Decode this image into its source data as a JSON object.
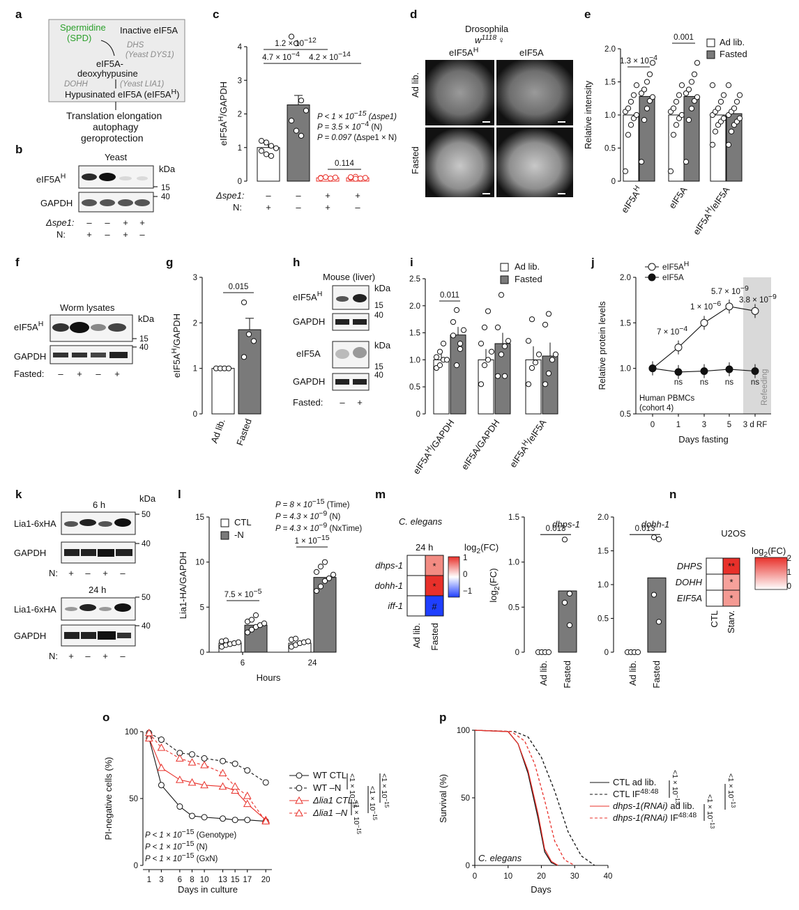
{
  "letters": [
    "a",
    "b",
    "c",
    "d",
    "e",
    "f",
    "g",
    "h",
    "i",
    "j",
    "k",
    "l",
    "m",
    "n",
    "o",
    "p"
  ],
  "a": {
    "spermidine": "Spermidine",
    "spd": "(SPD)",
    "inactive": "Inactive eIF5A",
    "dhs": "DHS",
    "dhs_yeast": "(Yeast DYS1)",
    "deoxy1": "eIF5A-",
    "deoxy2": "deoxyhypusine",
    "dohh": "DOHH",
    "dohh_yeast": "(Yeast LIA1)",
    "hypusinated": "Hypusinated eIF5A (eIF5A",
    "out1": "Translation elongation",
    "out2": "autophagy",
    "out3": "geroprotection"
  },
  "b": {
    "title": "Yeast",
    "kda": "kDa",
    "band1": "eIF5A",
    "band2": "GAPDH",
    "m15": "15",
    "m40": "40",
    "row1": "Δspe1:",
    "row2": "N:",
    "spe1": [
      "–",
      "–",
      "+",
      "+"
    ],
    "n": [
      "+",
      "–",
      "+",
      "–"
    ]
  },
  "c": {
    "ylabel": "eIF5A",
    "ylabel_sup": "H",
    "ylabel_rest": "/GAPDH",
    "yticks": [
      "0",
      "1",
      "2",
      "3",
      "4"
    ],
    "p1": "1.2 × 10",
    "p1e": "−12",
    "p2": "4.7 × 10",
    "p2e": "−4",
    "p3": "4.2 × 10",
    "p3e": "−14",
    "p4": "0.114",
    "s1": "P < 1 × 10",
    "s1e": "−15",
    "s1t": "(Δspe1)",
    "s2": "P = 3.5 × 10",
    "s2e": "−4",
    "s2t": "(N)",
    "s3": "P = 0.097",
    "s3t": "(Δspe1 × N)",
    "row1": "Δspe1:",
    "row2": "N:",
    "spe1": [
      "–",
      "–",
      "+",
      "+"
    ],
    "n": [
      "+",
      "–",
      "+",
      "–"
    ]
  },
  "chart_data": [
    {
      "panel": "c",
      "type": "bar",
      "categories": [
        "WT +N",
        "WT –N",
        "Δspe1 +N",
        "Δspe1 –N"
      ],
      "values": [
        1.0,
        2.27,
        0.1,
        0.1
      ],
      "errors": [
        0.1,
        0.28,
        0.02,
        0.02
      ],
      "points": [
        [
          1.2,
          1.15,
          1.05,
          0.98,
          0.9,
          0.8,
          0.75
        ],
        [
          4.3,
          4.1,
          2.4,
          2.1,
          1.8,
          1.5,
          1.35
        ],
        [
          0.1,
          0.12,
          0.08,
          0.11,
          0.09
        ],
        [
          0.1,
          0.13,
          0.08,
          0.1,
          0.12,
          0.07
        ]
      ],
      "ylabel": "eIF5AH/GAPDH",
      "ylim": [
        0,
        4
      ],
      "colors": [
        "#ffffff",
        "#7a7a7a",
        "#e8302a",
        "#e8302a"
      ]
    },
    {
      "panel": "e",
      "type": "bar",
      "categories": [
        "eIF5AH",
        "eIF5A",
        "eIF5AH/eIF5A"
      ],
      "series": [
        {
          "name": "Ad lib.",
          "values": [
            1.0,
            1.0,
            1.0
          ]
        },
        {
          "name": "Fasted",
          "values": [
            1.28,
            1.28,
            1.02
          ]
        }
      ],
      "ylabel": "Relative intensity",
      "ylim": [
        0,
        2.0
      ]
    },
    {
      "panel": "g",
      "type": "bar",
      "categories": [
        "Ad lib.",
        "Fasted"
      ],
      "values": [
        1.0,
        1.85
      ],
      "errors": [
        0,
        0.25
      ],
      "ylabel": "eIF5AH/GAPDH",
      "ylim": [
        0,
        3
      ]
    },
    {
      "panel": "i",
      "type": "bar",
      "categories": [
        "eIF5AH/GAPDH",
        "eIF5A/GAPDH",
        "eIF5AH/eIF5A"
      ],
      "series": [
        {
          "name": "Ad lib.",
          "values": [
            1.0,
            1.0,
            1.0
          ]
        },
        {
          "name": "Fasted",
          "values": [
            1.46,
            1.3,
            1.07
          ]
        }
      ],
      "ylim": [
        0,
        2.5
      ]
    },
    {
      "panel": "j",
      "type": "line",
      "x": [
        "0",
        "1",
        "3",
        "5",
        "3 d RF"
      ],
      "series": [
        {
          "name": "eIF5AH",
          "values": [
            1.0,
            1.23,
            1.5,
            1.68,
            1.63
          ]
        },
        {
          "name": "eIF5A",
          "values": [
            1.0,
            0.96,
            0.97,
            0.99,
            0.97
          ]
        }
      ],
      "xlabel": "Days fasting",
      "ylabel": "Relative protein levels",
      "ylim": [
        0.5,
        2.0
      ]
    },
    {
      "panel": "l",
      "type": "bar",
      "categories": [
        "6",
        "24"
      ],
      "series": [
        {
          "name": "CTL",
          "values": [
            1.0,
            1.0
          ]
        },
        {
          "name": "-N",
          "values": [
            3.0,
            8.3
          ]
        }
      ],
      "xlabel": "Hours",
      "ylabel": "Lia1-HA/GAPDH",
      "ylim": [
        0,
        15
      ]
    },
    {
      "panel": "m-dhps",
      "type": "bar",
      "categories": [
        "Ad lib.",
        "Fasted"
      ],
      "values": [
        0,
        0.68
      ],
      "ylabel": "log2(FC)",
      "ylim": [
        0,
        1.5
      ]
    },
    {
      "panel": "m-dohh",
      "type": "bar",
      "categories": [
        "Ad lib.",
        "Fasted"
      ],
      "values": [
        0,
        1.1
      ],
      "ylim": [
        0,
        2
      ]
    },
    {
      "panel": "o",
      "type": "line",
      "x": [
        1,
        3,
        6,
        8,
        10,
        13,
        15,
        17,
        20
      ],
      "series": [
        {
          "name": "WT CTL",
          "values": [
            95,
            60,
            44,
            37,
            36,
            35,
            34,
            34,
            33
          ]
        },
        {
          "name": "WT –N",
          "values": [
            99,
            94,
            84,
            83,
            80,
            78,
            76,
            71,
            62
          ]
        },
        {
          "name": "Δlia1 CTL",
          "values": [
            95,
            73,
            64,
            62,
            60,
            59,
            56,
            46,
            34
          ]
        },
        {
          "name": "Δlia1 –N",
          "values": [
            99,
            88,
            80,
            77,
            75,
            69,
            59,
            52,
            33
          ]
        }
      ],
      "xlabel": "Days in culture",
      "ylabel": "PI-negative cells (%)",
      "ylim": [
        0,
        100
      ]
    },
    {
      "panel": "p",
      "type": "line",
      "series": [
        {
          "name": "CTL ad lib.",
          "x": [
            0,
            10,
            13,
            16,
            19,
            21,
            23,
            25
          ],
          "values": [
            100,
            99,
            90,
            68,
            35,
            10,
            2,
            0
          ]
        },
        {
          "name": "CTL IF48:48",
          "x": [
            0,
            12,
            16,
            20,
            24,
            28,
            32,
            36
          ],
          "values": [
            100,
            99,
            95,
            80,
            55,
            25,
            7,
            0
          ]
        },
        {
          "name": "dhps-1(RNAi) ad lib.",
          "x": [
            0,
            10,
            13,
            16,
            19,
            21,
            23,
            25
          ],
          "values": [
            100,
            99,
            90,
            70,
            38,
            12,
            3,
            0
          ]
        },
        {
          "name": "dhps-1(RNAi) IF48:48",
          "x": [
            0,
            11,
            15,
            18,
            21,
            24,
            27,
            30
          ],
          "values": [
            100,
            99,
            92,
            75,
            48,
            18,
            4,
            0
          ]
        }
      ],
      "xlabel": "Days",
      "ylabel": "Survival (%)",
      "ylim": [
        0,
        100
      ]
    }
  ],
  "d": {
    "title": "Drosophila",
    "strain": "w",
    "strain_sup": "1118",
    "sex": "♀",
    "col1": "eIF5A",
    "col1_sup": "H",
    "col2": "eIF5A",
    "row1": "Ad lib.",
    "row2": "Fasted"
  },
  "e": {
    "ylabel": "Relative intensity",
    "yticks": [
      "0",
      "0.5",
      "1.0",
      "1.5",
      "2.0"
    ],
    "p1": "1.3 × 10",
    "p1e": "−4",
    "p2": "0.001",
    "leg1": "Ad lib.",
    "leg2": "Fasted",
    "x1": "eIF5A",
    "x1s": "H",
    "x2": "eIF5A",
    "x3": "eIF5A",
    "x3s": "H",
    "x3r": "/eIF5A"
  },
  "f": {
    "title": "Worm lysates",
    "kda": "kDa",
    "band1": "eIF5A",
    "band1s": "H",
    "band2": "GAPDH",
    "m15": "15",
    "m40": "40",
    "row": "Fasted:",
    "signs": [
      "–",
      "+",
      "–",
      "+"
    ]
  },
  "g": {
    "ylabel": "eIF5A",
    "ylabel_sup": "H",
    "ylabel_rest": "/GAPDH",
    "yticks": [
      "0",
      "1",
      "2",
      "3"
    ],
    "p": "0.015",
    "x1": "Ad lib.",
    "x2": "Fasted"
  },
  "h": {
    "title": "Mouse (liver)",
    "kda": "kDa",
    "band1": "eIF5A",
    "band1s": "H",
    "band2": "GAPDH",
    "band3": "eIF5A",
    "band4": "GAPDH",
    "m15": "15",
    "m40": "40",
    "row": "Fasted:",
    "signs": [
      "–",
      "+"
    ]
  },
  "i": {
    "yticks": [
      "0",
      "0.5",
      "1.0",
      "1.5",
      "2.0",
      "2.5"
    ],
    "p": "0.011",
    "leg1": "Ad lib.",
    "leg2": "Fasted",
    "x1": "eIF5A",
    "x1s": "H",
    "x1r": "/GAPDH",
    "x2": "eIF5A/GAPDH",
    "x3": "eIF5A",
    "x3s": "H",
    "x3r": "/eIF5A"
  },
  "j": {
    "leg1": "eIF5A",
    "leg1s": "H",
    "leg2": "eIF5A",
    "ylabel": "Relative protein levels",
    "xlabel": "Days fasting",
    "yticks": [
      "0.5",
      "1.0",
      "1.5",
      "2.0"
    ],
    "xticks": [
      "0",
      "1",
      "3",
      "5",
      "3 d RF"
    ],
    "p1": "7 × 10",
    "p1e": "−4",
    "p2": "1 × 10",
    "p2e": "−6",
    "p3": "5.7 × 10",
    "p3e": "−9",
    "p4": "3.8 × 10",
    "p4e": "−9",
    "ns": "ns",
    "note1": "Human PBMCs",
    "note2": "(cohort 4)",
    "refeed": "Refeeding"
  },
  "k": {
    "kda": "kDa",
    "t1": "6 h",
    "t2": "24 h",
    "band1": "Lia1-6xHA",
    "band2": "GAPDH",
    "m50": "50",
    "m40": "40",
    "row": "N:",
    "signs": [
      "+",
      "–",
      "+",
      "–"
    ]
  },
  "l": {
    "ylabel": "Lia1-HA/GAPDH",
    "xlabel": "Hours",
    "yticks": [
      "0",
      "5",
      "10",
      "15"
    ],
    "xticks": [
      "6",
      "24"
    ],
    "leg1": "CTL",
    "leg2": "-N",
    "s1": "P = 8 × 10",
    "s1e": "−15",
    "s1t": "(Time)",
    "s2": "P = 4.3 × 10",
    "s2e": "−9",
    "s2t": "(N)",
    "s3": "P = 4.3 × 10",
    "s3e": "−9",
    "s3t": "(NxTime)",
    "p1": "7.5 × 10",
    "p1e": "−5",
    "p2": "1 × 10",
    "p2e": "−15"
  },
  "m": {
    "species": "C. elegans",
    "time": "24 h",
    "leg": "log",
    "legs": "2",
    "legr": "(FC)",
    "legticks": [
      "1",
      "0",
      "−1"
    ],
    "rows": [
      "dhps-1",
      "dohh-1",
      "iff-1"
    ],
    "marks": [
      "*",
      "*",
      "#"
    ],
    "cols": [
      "Ad lib.",
      "Fasted"
    ],
    "g1title": "dhps-1",
    "g1ylabel": "log",
    "g1ysub": "2",
    "g1yrest": "(FC)",
    "g1yticks": [
      "0",
      "0.5",
      "1.0",
      "1.5"
    ],
    "g1p": "0.013",
    "g2title": "dohh-1",
    "g2yticks": [
      "0",
      "0.5",
      "1.0",
      "1.5",
      "2.0"
    ],
    "g2p": "0.013",
    "x1": "Ad lib.",
    "x2": "Fasted"
  },
  "n": {
    "title": "U2OS",
    "leg": "log",
    "legs": "2",
    "legr": "(FC)",
    "legticks": [
      "2",
      "1",
      "0"
    ],
    "rows": [
      "DHPS",
      "DOHH",
      "EIF5A"
    ],
    "marks": [
      "**",
      "*",
      "*"
    ],
    "cols": [
      "CTL",
      "Starv."
    ]
  },
  "o": {
    "ylabel": "PI-negative cells (%)",
    "xlabel": "Days in culture",
    "yticks": [
      "0",
      "50",
      "100"
    ],
    "xticks": [
      "1",
      "3",
      "6",
      "8",
      "10",
      "13",
      "15",
      "17",
      "20"
    ],
    "legend": [
      "WT CTL",
      "WT –N",
      "Δlia1 CTL",
      "Δlia1 –N"
    ],
    "s1": "P < 1 × 10",
    "s1e": "−15",
    "s1t": "(Genotype)",
    "s2": "P < 1 × 10",
    "s2e": "−15",
    "s2t": "(N)",
    "s3": "P < 1 × 10",
    "s3e": "−15",
    "s3t": "(GxN)",
    "brk": "<1 × 10",
    "brke": "−15"
  },
  "p": {
    "ylabel": "Survival (%)",
    "xlabel": "Days",
    "species": "C. elegans",
    "yticks": [
      "0",
      "50",
      "100"
    ],
    "xticks": [
      "0",
      "10",
      "20",
      "30",
      "40"
    ],
    "leg1": "CTL ad lib.",
    "leg2": "CTL IF",
    "leg2s": "48:48",
    "leg3": "dhps-1(RNAi)",
    "leg3r": " ad lib.",
    "leg4": "dhps-1(RNAi)",
    "leg4r": " IF",
    "leg4s": "48:48",
    "brk": "<1 × 10",
    "brke": "−13"
  },
  "colors": {
    "red": "#e8302a",
    "grey": "#7a7a7a",
    "lightgrey": "#d9d9d9",
    "blue": "#1f3fff"
  }
}
